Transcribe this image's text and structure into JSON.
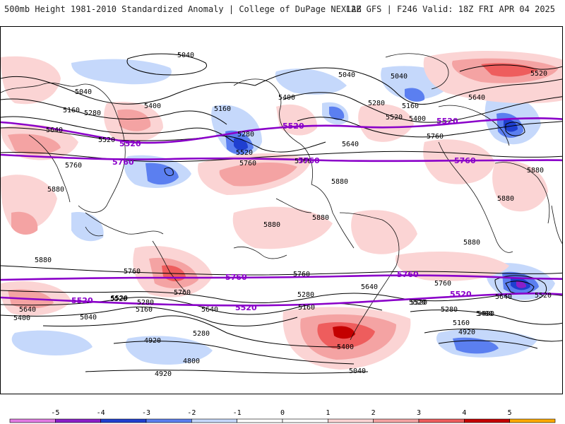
{
  "header": {
    "title_left": "500mb Height 1981-2010 Standardized Anomaly | College of DuPage NEXLAB",
    "title_right": "12Z GFS | F246 Valid: 18Z FRI APR 04 2025"
  },
  "colors": {
    "neg5": "#e27be3",
    "neg4": "#8a1fc9",
    "neg3": "#1f3fd0",
    "neg2": "#5b7ff0",
    "neg1": "#c5d8fb",
    "pos1": "#fbd4d4",
    "pos2": "#f4a3a3",
    "pos3": "#ee5d5d",
    "pos4": "#c40000",
    "pos5": "#ffaa00",
    "contour": "#000000",
    "key_contour": "#8a00c9"
  },
  "colorbar": {
    "ticks": [
      "-5",
      "-4",
      "-3",
      "-2",
      "-1",
      "0",
      "1",
      "2",
      "3",
      "4",
      "5"
    ]
  },
  "contour_labels": [
    "5040",
    "5040",
    "5040",
    "5160",
    "5280",
    "5400",
    "5160",
    "5040",
    "5520",
    "5640",
    "5520",
    "5640",
    "5760",
    "5280",
    "5520",
    "5760",
    "5880",
    "5400",
    "5280",
    "5160",
    "5520",
    "5400",
    "5760",
    "5640",
    "5760",
    "5880",
    "5880",
    "5880",
    "5880",
    "5880",
    "5880",
    "5880",
    "5760",
    "5760",
    "5760",
    "5640",
    "5760",
    "5520",
    "5280",
    "5160",
    "5040",
    "5400",
    "5640",
    "5520",
    "5640",
    "5280",
    "5160",
    "5280",
    "5640",
    "5520",
    "5400",
    "5520",
    "5280",
    "5160",
    "4920",
    "5400",
    "5040",
    "4920",
    "4800",
    "4920",
    "5520",
    "5400"
  ],
  "key_contour_labels": [
    "5520",
    "5520",
    "5760",
    "5760",
    "5520",
    "5520",
    "5760",
    "5760",
    "5760",
    "5520",
    "5520",
    "5520"
  ]
}
